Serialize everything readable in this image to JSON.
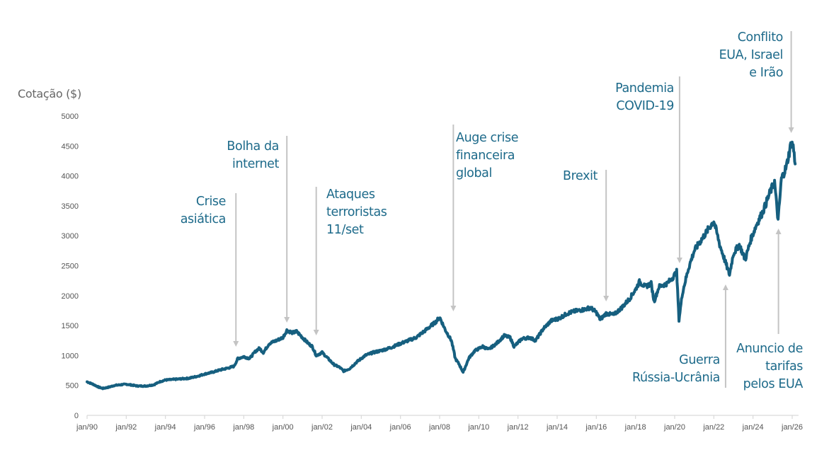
{
  "chart_data": {
    "type": "line",
    "title": "",
    "ylabel": "Cotação ($)",
    "xlabel": "",
    "ylim": [
      0,
      5000
    ],
    "xlim": [
      1990,
      2026.4
    ],
    "yticks": [
      0,
      500,
      1000,
      1500,
      2000,
      2500,
      3000,
      3500,
      4000,
      4500,
      5000
    ],
    "ytick_labels": [
      "0",
      "500",
      "1000",
      "1500",
      "2000",
      "2500",
      "3000",
      "3500",
      "4000",
      "4500",
      "5000"
    ],
    "xticks": [
      1990,
      1992,
      1994,
      1996,
      1998,
      2000,
      2002,
      2004,
      2006,
      2008,
      2010,
      2012,
      2014,
      2016,
      2018,
      2020,
      2022,
      2024,
      2026
    ],
    "xtick_labels": [
      "jan/90",
      "jan/92",
      "jan/94",
      "jan/96",
      "jan/98",
      "jan/00",
      "jan/02",
      "jan/04",
      "jan/06",
      "jan/08",
      "jan/10",
      "jan/12",
      "jan/14",
      "jan/16",
      "jan/18",
      "jan/20",
      "jan/22",
      "jan/24",
      "jan/26"
    ],
    "grid": false,
    "legend": "none",
    "series": [
      {
        "name": "Cotação",
        "color": "#165f7f",
        "x": [
          1990.0,
          1990.3,
          1990.6,
          1990.8,
          1991.1,
          1991.4,
          1991.7,
          1992.0,
          1992.3,
          1992.6,
          1993.0,
          1993.4,
          1993.7,
          1994.0,
          1994.4,
          1994.8,
          1995.2,
          1995.6,
          1996.0,
          1996.4,
          1996.8,
          1997.2,
          1997.5,
          1997.7,
          1998.0,
          1998.3,
          1998.6,
          1998.8,
          1999.0,
          1999.3,
          1999.6,
          2000.0,
          2000.2,
          2000.5,
          2000.7,
          2001.0,
          2001.3,
          2001.5,
          2001.7,
          2002.0,
          2002.3,
          2002.6,
          2002.9,
          2003.1,
          2003.4,
          2003.8,
          2004.2,
          2004.6,
          2005.0,
          2005.5,
          2006.0,
          2006.4,
          2006.8,
          2007.2,
          2007.5,
          2007.8,
          2008.0,
          2008.3,
          2008.6,
          2008.8,
          2009.0,
          2009.2,
          2009.5,
          2009.8,
          2010.2,
          2010.5,
          2010.9,
          2011.3,
          2011.6,
          2011.8,
          2012.2,
          2012.6,
          2012.9,
          2013.3,
          2013.7,
          2014.1,
          2014.5,
          2014.9,
          2015.4,
          2015.7,
          2016.0,
          2016.2,
          2016.5,
          2016.9,
          2017.3,
          2017.7,
          2018.0,
          2018.2,
          2018.5,
          2018.8,
          2018.95,
          2019.2,
          2019.6,
          2019.9,
          2020.1,
          2020.22,
          2020.4,
          2020.7,
          2021.0,
          2021.4,
          2021.8,
          2022.0,
          2022.3,
          2022.6,
          2022.8,
          2023.0,
          2023.3,
          2023.6,
          2023.9,
          2024.2,
          2024.5,
          2024.9,
          2025.1,
          2025.28,
          2025.45,
          2025.7,
          2025.95,
          2026.05,
          2026.15
        ],
        "values": [
          560,
          520,
          470,
          450,
          470,
          500,
          510,
          520,
          505,
          490,
          490,
          510,
          560,
          590,
          600,
          610,
          620,
          650,
          690,
          720,
          760,
          790,
          820,
          950,
          980,
          950,
          1070,
          1120,
          1050,
          1200,
          1240,
          1300,
          1420,
          1380,
          1400,
          1300,
          1200,
          1150,
          1000,
          1050,
          950,
          850,
          800,
          740,
          780,
          900,
          1000,
          1050,
          1080,
          1130,
          1200,
          1250,
          1300,
          1400,
          1480,
          1560,
          1640,
          1420,
          1250,
          950,
          850,
          720,
          960,
          1080,
          1150,
          1100,
          1200,
          1330,
          1300,
          1150,
          1280,
          1300,
          1250,
          1450,
          1580,
          1620,
          1700,
          1740,
          1770,
          1800,
          1720,
          1600,
          1700,
          1680,
          1800,
          1950,
          2100,
          2230,
          2150,
          2200,
          1900,
          2150,
          2200,
          2300,
          2400,
          1600,
          2050,
          2450,
          2750,
          2950,
          3150,
          3250,
          2850,
          2550,
          2350,
          2700,
          2850,
          2600,
          2950,
          3200,
          3400,
          3750,
          3900,
          3250,
          3950,
          4150,
          4550,
          4500,
          4200
        ]
      }
    ],
    "annotations": [
      {
        "lines": [
          "Crise",
          "asiática"
        ],
        "x": 1997.6,
        "arrow": "down",
        "align": "right"
      },
      {
        "lines": [
          "Bolha da",
          "internet"
        ],
        "x": 2000.2,
        "arrow": "down",
        "align": "right"
      },
      {
        "lines": [
          "Ataques",
          "terroristas",
          "11/set"
        ],
        "x": 2001.7,
        "arrow": "down",
        "align": "left"
      },
      {
        "lines": [
          "Auge crise",
          "financeira",
          "global"
        ],
        "x": 2008.7,
        "arrow": "down",
        "align": "left"
      },
      {
        "lines": [
          "Brexit"
        ],
        "x": 2016.5,
        "arrow": "down",
        "align": "right"
      },
      {
        "lines": [
          "Pandemia",
          "COVID-19"
        ],
        "x": 2020.25,
        "arrow": "down",
        "align": "right"
      },
      {
        "lines": [
          "Conflito",
          "EUA, Israel",
          "e Irão"
        ],
        "x": 2025.95,
        "arrow": "down",
        "align": "right"
      },
      {
        "lines": [
          "Guerra",
          "Rússia-Ucrânia"
        ],
        "x": 2022.6,
        "arrow": "up",
        "align": "right"
      },
      {
        "lines": [
          "Anuncio de",
          "tarifas",
          "pelos EUA"
        ],
        "x": 2025.3,
        "arrow": "up",
        "align": "right"
      }
    ]
  }
}
